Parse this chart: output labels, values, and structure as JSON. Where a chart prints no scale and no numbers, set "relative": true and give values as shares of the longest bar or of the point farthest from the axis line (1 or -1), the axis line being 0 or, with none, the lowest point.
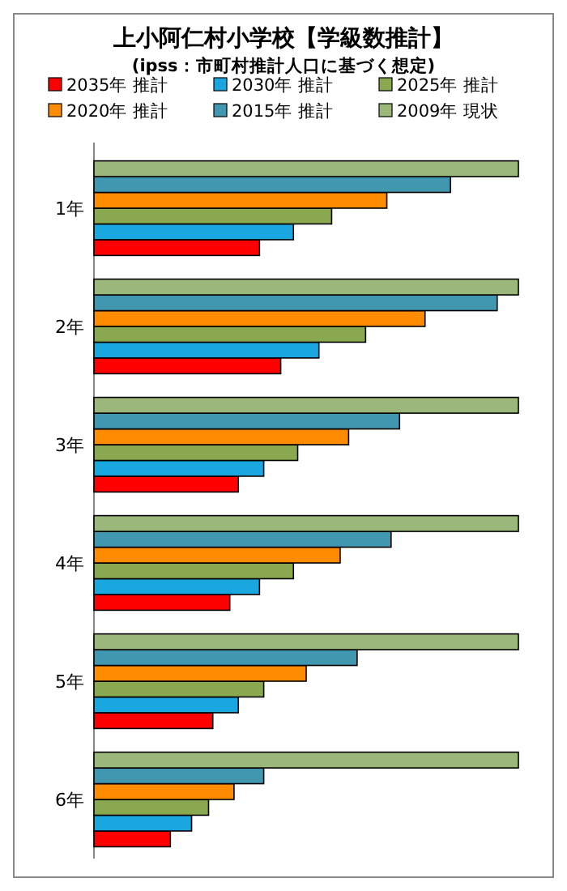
{
  "chart_data": {
    "type": "bar",
    "orientation": "horizontal",
    "relative": true,
    "title": "上小阿仁村小学校【学級数推計】",
    "subtitle": "(ipss：市町村推計人口に基づく想定)",
    "categories": [
      "1年",
      "2年",
      "3年",
      "4年",
      "5年",
      "6年"
    ],
    "legend": "top",
    "series": [
      {
        "name": "2035年 推計",
        "color": "#ff0000",
        "values": [
          0.39,
          0.44,
          0.34,
          0.32,
          0.28,
          0.18
        ]
      },
      {
        "name": "2030年 推計",
        "color": "#1aa7e0",
        "values": [
          0.47,
          0.53,
          0.4,
          0.39,
          0.34,
          0.23
        ]
      },
      {
        "name": "2025年 推計",
        "color": "#8aa84f",
        "values": [
          0.56,
          0.64,
          0.48,
          0.47,
          0.4,
          0.27
        ]
      },
      {
        "name": "2020年 推計",
        "color": "#ff8c00",
        "values": [
          0.69,
          0.78,
          0.6,
          0.58,
          0.5,
          0.33
        ]
      },
      {
        "name": "2015年 推計",
        "color": "#4297b0",
        "values": [
          0.84,
          0.95,
          0.72,
          0.7,
          0.62,
          0.4
        ]
      },
      {
        "name": "2009年 現状",
        "color": "#9bb77a",
        "values": [
          1,
          1,
          1,
          1,
          1,
          1
        ]
      }
    ]
  }
}
